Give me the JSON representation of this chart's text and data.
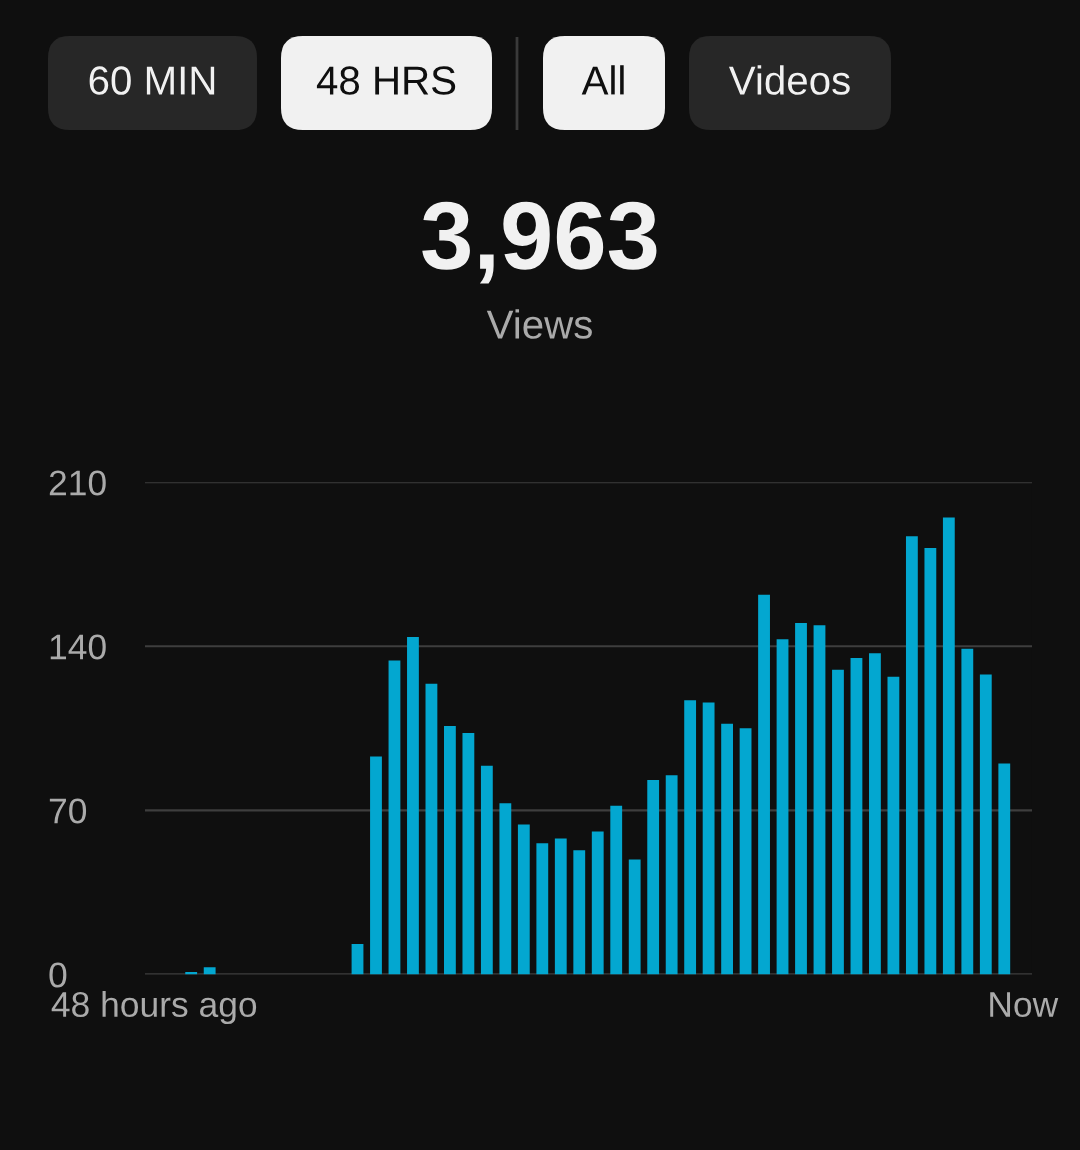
{
  "chart_data": {
    "type": "bar",
    "title": "3,963",
    "subtitle": "Views",
    "annotations": [
      "60 MIN",
      "48 HRS",
      "All",
      "Videos"
    ],
    "categories": [
      "48 hours ago",
      null,
      null,
      null,
      null,
      null,
      null,
      null,
      null,
      null,
      null,
      null,
      null,
      null,
      null,
      null,
      null,
      null,
      null,
      null,
      null,
      null,
      null,
      null,
      null,
      null,
      null,
      null,
      null,
      null,
      null,
      null,
      null,
      null,
      null,
      null,
      null,
      null,
      null,
      null,
      null,
      null,
      null,
      null,
      null,
      null,
      null,
      "Now"
    ],
    "values": [
      0,
      0,
      1,
      3,
      0,
      0,
      0,
      0,
      0,
      0,
      0,
      13,
      93,
      134,
      144,
      124,
      106,
      103,
      89,
      73,
      64,
      56,
      58,
      53,
      61,
      72,
      49,
      83,
      85,
      117,
      116,
      107,
      105,
      162,
      143,
      150,
      149,
      130,
      135,
      137,
      127,
      187,
      182,
      195,
      139,
      128,
      90,
      0
    ],
    "color": "#03a7d0",
    "ylim": [
      0,
      210
    ],
    "yticks": [
      0,
      70,
      140,
      210
    ],
    "grid": "y"
  }
}
